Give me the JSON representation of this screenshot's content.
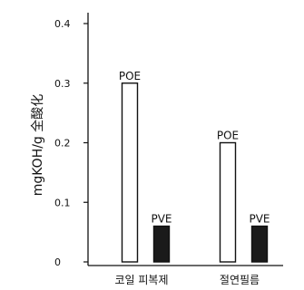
{
  "chart_data": {
    "type": "bar",
    "title": "",
    "xlabel": "",
    "ylabel": "mgKOH/g 全酸化",
    "ylim": [
      0,
      0.4
    ],
    "yticks": [
      {
        "value": 0,
        "label": "0"
      },
      {
        "value": 0.1,
        "label": "0.1"
      },
      {
        "value": 0.2,
        "label": "0.2"
      },
      {
        "value": 0.3,
        "label": "0.3"
      },
      {
        "value": 0.4,
        "label": "0.4"
      }
    ],
    "categories": [
      "코일 피복제",
      "절연필름"
    ],
    "series": [
      {
        "name": "POE",
        "values": [
          0.3,
          0.2
        ],
        "color": "#ffffff"
      },
      {
        "name": "PVE",
        "values": [
          0.06,
          0.06
        ],
        "color": "#1a1a1a"
      }
    ],
    "legend": "none",
    "grid": false
  }
}
